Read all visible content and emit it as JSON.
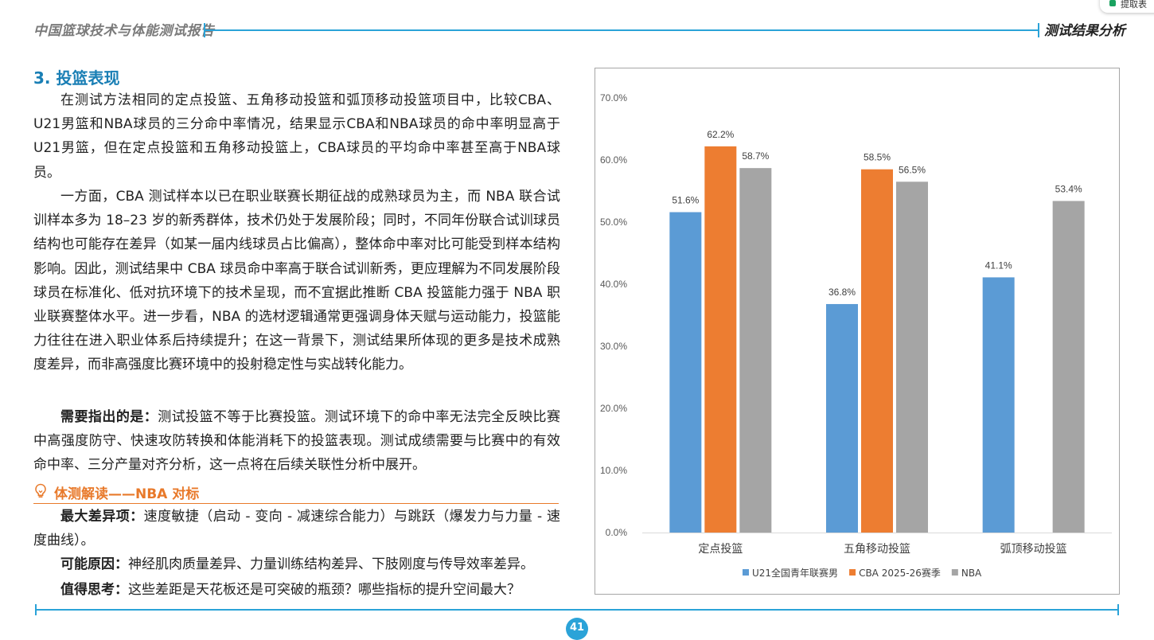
{
  "header": {
    "report_title": "中国篮球技术与体能测试报告",
    "section_name": "测试结果分析"
  },
  "corner_button": {
    "label": "提取表"
  },
  "section": {
    "title": "3. 投篮表现",
    "para1": "在测试方法相同的定点投篮、五角移动投篮和弧顶移动投篮项目中，比较CBA、U21男篮和NBA球员的三分命中率情况，结果显示CBA和NBA球员的命中率明显高于U21男篮，但在定点投篮和五角移动投篮上，CBA球员的平均命中率甚至高于NBA球员。",
    "para2": "一方面，CBA 测试样本以已在职业联赛长期征战的成熟球员为主，而 NBA 联合试训样本多为 18–23 岁的新秀群体，技术仍处于发展阶段；同时，不同年份联合试训球员结构也可能存在差异（如某一届内线球员占比偏高），整体命中率对比可能受到样本结构影响。因此，测试结果中 CBA 球员命中率高于联合试训新秀，更应理解为不同发展阶段球员在标准化、低对抗环境下的技术呈现，而不宜据此推断 CBA 投篮能力强于 NBA 职业联赛整体水平。进一步看，NBA 的选材逻辑通常更强调身体天赋与运动能力，投篮能力往往在进入职业体系后持续提升；在这一背景下，测试结果所体现的更多是技术成熟度差异，而非高强度比赛环境中的投射稳定性与实战转化能力。",
    "para3_label": "需要指出的是：",
    "para3_text": "测试投篮不等于比赛投篮。测试环境下的命中率无法完全反映比赛中高强度防守、快速攻防转换和体能消耗下的投篮表现。测试成绩需要与比赛中的有效命中率、三分产量对齐分析，这一点将在后续关联性分析中展开。"
  },
  "insight": {
    "title": "体测解读——NBA 对标",
    "items": [
      {
        "label": "最大差异项：",
        "text": "速度敏捷（启动 - 变向 - 减速综合能力）与跳跃（爆发力与力量 - 速度曲线）。"
      },
      {
        "label": "可能原因：",
        "text": "神经肌肉质量差异、力量训练结构差异、下肢刚度与传导效率差异。"
      },
      {
        "label": "值得思考：",
        "text": "这些差距是天花板还是可突破的瓶颈？哪些指标的提升空间最大？"
      }
    ]
  },
  "page_number": "41",
  "chart_data": {
    "type": "bar",
    "categories": [
      "定点投篮",
      "五角移动投篮",
      "弧顶移动投篮"
    ],
    "series": [
      {
        "name": "U21全国青年联赛男",
        "color": "#5b9bd5",
        "values": [
          51.6,
          36.8,
          41.1
        ],
        "labels": [
          "51.6%",
          "36.8%",
          "41.1%"
        ]
      },
      {
        "name": "CBA 2025-26赛季",
        "color": "#ed7d31",
        "values": [
          62.2,
          58.5,
          null
        ],
        "labels": [
          "62.2%",
          "58.5%",
          ""
        ]
      },
      {
        "name": "NBA",
        "color": "#a5a5a5",
        "values": [
          58.7,
          56.5,
          53.4
        ],
        "labels": [
          "58.7%",
          "56.5%",
          "53.4%"
        ]
      }
    ],
    "ylim": [
      0,
      70
    ],
    "yticks": [
      "0.0%",
      "10.0%",
      "20.0%",
      "30.0%",
      "40.0%",
      "50.0%",
      "60.0%",
      "70.0%"
    ],
    "grid": false,
    "legend_position": "bottom"
  }
}
